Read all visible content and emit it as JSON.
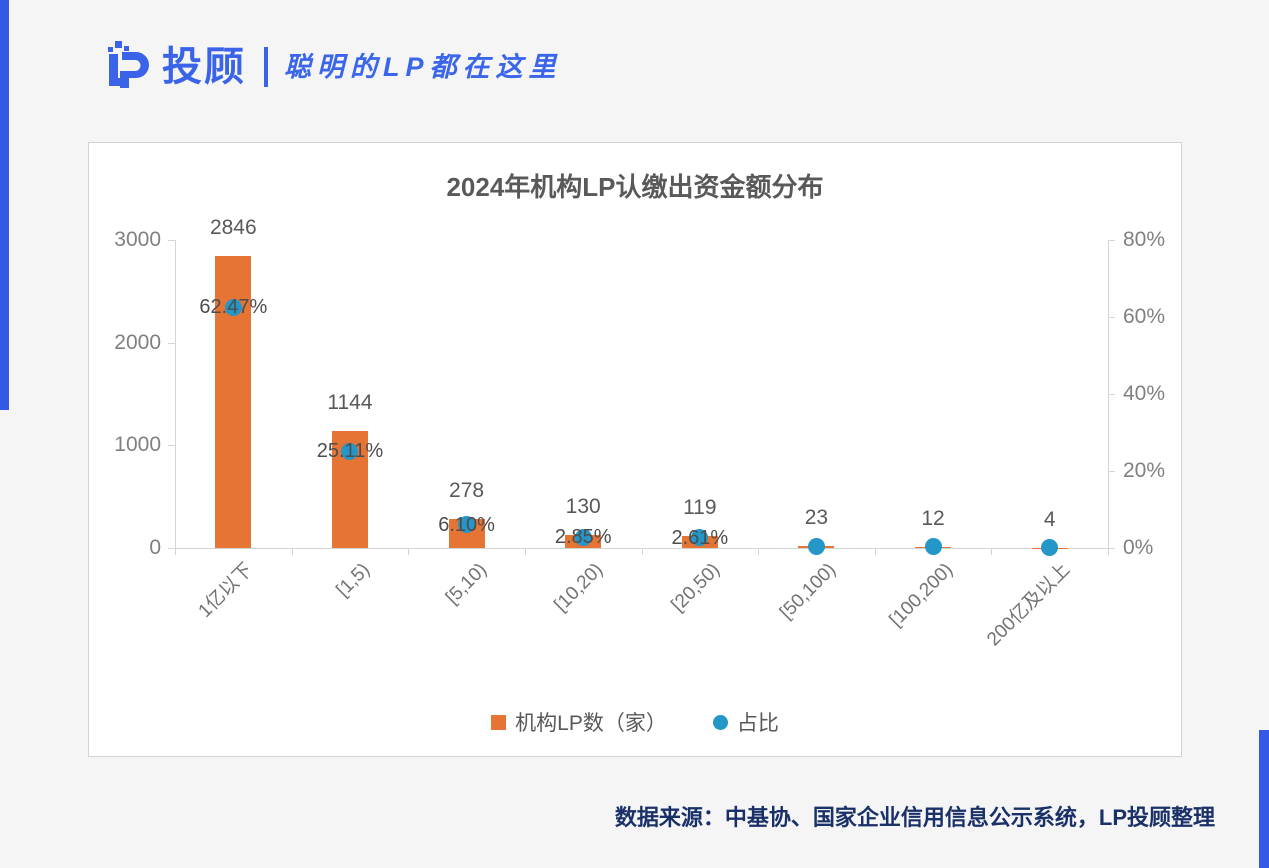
{
  "page": {
    "background": "#F5F5F6",
    "accent_color": "#3359E6"
  },
  "header": {
    "logo_text": "投顾",
    "tagline": "聪明的LP都在这里",
    "logo_color": "#3A63E8"
  },
  "source_note": "数据来源：中基协、国家企业信用信息公示系统，LP投顾整理",
  "chart_data": {
    "type": "bar",
    "subtype": "bar with scatter overlay, dual y-axes",
    "title": "2024年机构LP认缴出资金额分布",
    "categories": [
      "1亿以下",
      "[1,5)",
      "[5,10)",
      "[10,20)",
      "[20,50)",
      "[50,100)",
      "[100,200)",
      "200亿及以上"
    ],
    "series": [
      {
        "name": "机构LP数（家）",
        "type": "bar",
        "axis": "left",
        "color": "#E67434",
        "values": [
          2846,
          1144,
          278,
          130,
          119,
          23,
          12,
          4
        ]
      },
      {
        "name": "占比",
        "type": "scatter",
        "axis": "right",
        "color": "#2496C7",
        "values": [
          62.47,
          25.11,
          6.1,
          2.85,
          2.61,
          0.5,
          0.26,
          0.09
        ],
        "labels": [
          "62.47%",
          "25.11%",
          "6.10%",
          "2.85%",
          "2.61%",
          "",
          "",
          ""
        ]
      }
    ],
    "left_axis": {
      "min": 0,
      "max": 3000,
      "ticks": [
        0,
        1000,
        2000,
        3000
      ],
      "tick_labels": [
        "0",
        "1000",
        "2000",
        "3000"
      ]
    },
    "right_axis": {
      "min": 0,
      "max": 80,
      "ticks": [
        0,
        20,
        40,
        60,
        80
      ],
      "tick_labels": [
        "0%",
        "20%",
        "40%",
        "60%",
        "80%"
      ]
    },
    "grid": false,
    "legend_position": "bottom-center",
    "xlabel": "",
    "ylabel": ""
  }
}
